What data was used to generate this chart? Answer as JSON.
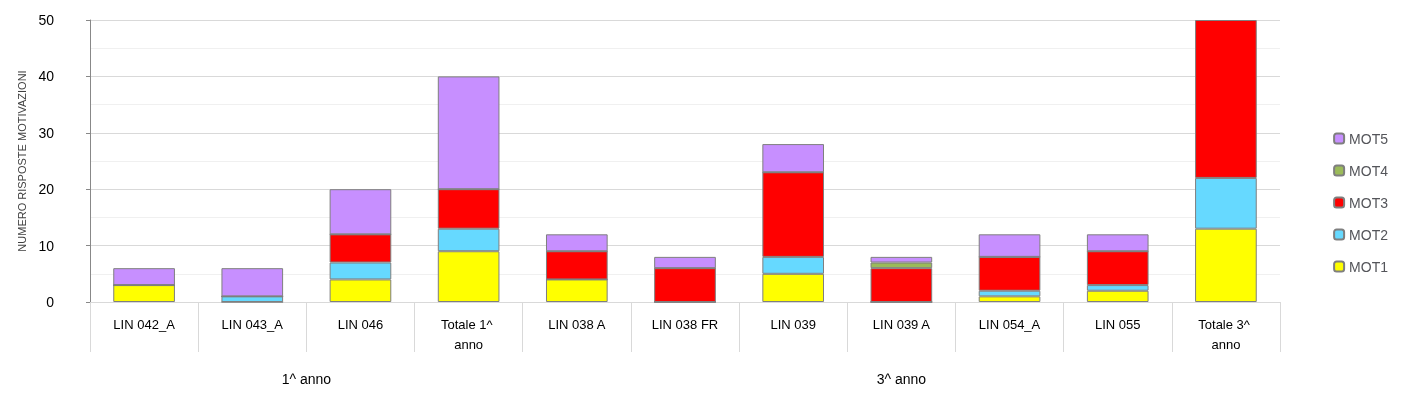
{
  "chart_data": {
    "type": "bar",
    "stacked": true,
    "ylabel": "NUMERO RISPOSTE MOTIVAZIONI",
    "categories": [
      "LIN 042_A",
      "LIN 043_A",
      "LIN 046",
      "Totale 1^ anno",
      "LIN 038 A",
      "LIN 038 FR",
      "LIN 039",
      "LIN 039 A",
      "LIN 054_A",
      "LIN 055",
      "Totale 3^ anno"
    ],
    "series": [
      {
        "name": "MOT1",
        "color": "#ffff00",
        "values": [
          3,
          0,
          4,
          9,
          4,
          0,
          5,
          0,
          1,
          2,
          13
        ]
      },
      {
        "name": "MOT2",
        "color": "#66d9ff",
        "values": [
          0,
          1,
          3,
          4,
          0,
          0,
          3,
          0,
          1,
          1,
          9
        ]
      },
      {
        "name": "MOT3",
        "color": "#ff0000",
        "values": [
          0,
          0,
          5,
          7,
          5,
          6,
          15,
          6,
          6,
          6,
          28
        ]
      },
      {
        "name": "MOT4",
        "color": "#9bbb59",
        "values": [
          0,
          0,
          0,
          0,
          0,
          0,
          0,
          1,
          0,
          0,
          null
        ]
      },
      {
        "name": "MOT5",
        "color": "#c78fff",
        "values": [
          3,
          5,
          8,
          20,
          3,
          2,
          5,
          1,
          4,
          3,
          null
        ]
      }
    ],
    "ylim": [
      0,
      50
    ],
    "yticks": [
      0,
      10,
      20,
      30,
      40,
      50
    ],
    "grid": "y",
    "legend": "right",
    "annotations": [
      "1^ anno",
      "3^ anno"
    ]
  }
}
